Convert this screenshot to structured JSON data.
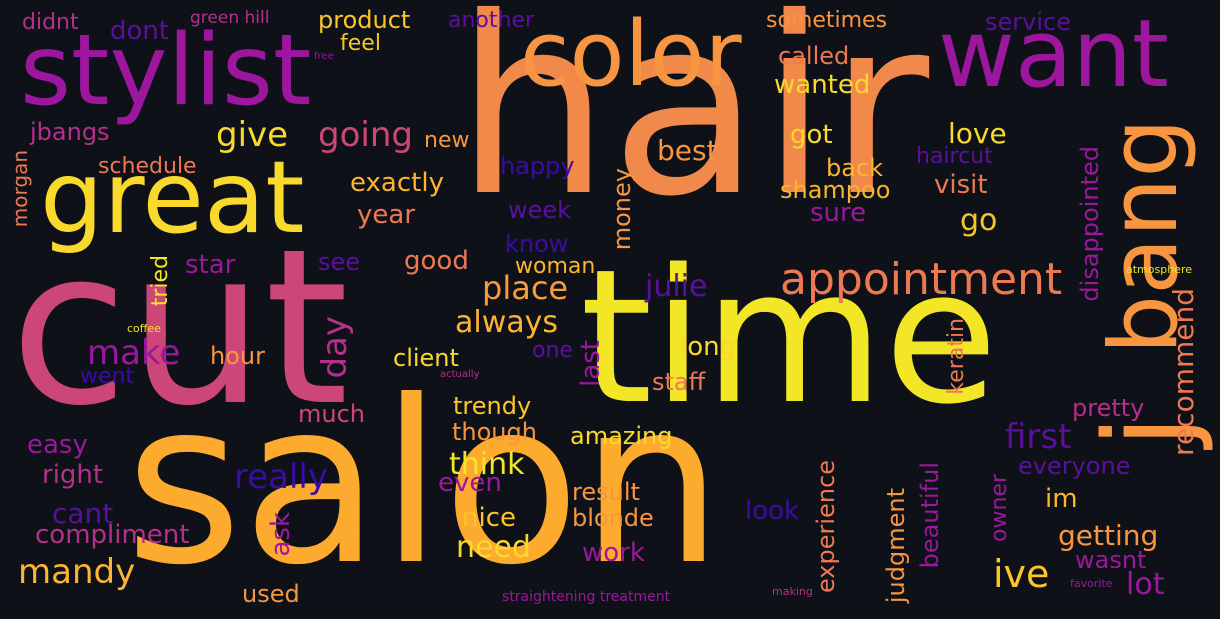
{
  "palette": {
    "background": "#0e1117",
    "deep_purple": "#3a0ca3",
    "purple": "#9c179e",
    "magenta_pink": "#cc4778",
    "orange": "#ed7953",
    "light_orange": "#f89540",
    "amber": "#fdb42f",
    "yellow": "#f0f921"
  },
  "words": {
    "hair": "hair",
    "salon": "salon",
    "cut": "cut",
    "time": "time",
    "great": "great",
    "stylist": "stylist",
    "color": "color",
    "want": "want",
    "bang": "bang",
    "j": "j",
    "appointment": "appointment",
    "first": "first",
    "place": "place",
    "always": "always",
    "julie": "julie",
    "ive": "ive",
    "day": "day",
    "make": "make",
    "mandy": "mandy",
    "really": "really",
    "think": "think",
    "need": "need",
    "going": "going",
    "give": "give",
    "exactly": "exactly",
    "best": "best",
    "recommend": "recommend",
    "haircut": "haircut",
    "visit": "visit",
    "sure": "sure",
    "go": "go",
    "love": "love",
    "got": "got",
    "back": "back",
    "shampoo": "shampoo",
    "wanted": "wanted",
    "called": "called",
    "sometimes": "sometimes",
    "service": "service",
    "product": "product",
    "feel": "feel",
    "another": "another",
    "dont": "dont",
    "didnt": "didnt",
    "green_hill": "green hill",
    "free": "free",
    "jbangs": "jbangs",
    "new": "new",
    "schedule": "schedule",
    "year": "year",
    "morgan": "morgan",
    "happy": "happy",
    "week": "week",
    "know": "know",
    "money": "money",
    "tried": "tried",
    "star": "star",
    "see": "see",
    "good": "good",
    "woman": "woman",
    "disappointed": "disappointed",
    "keratin": "keratin",
    "atmosphere": "atmosphere",
    "coffee": "coffee",
    "hour": "hour",
    "client": "client",
    "one": "one",
    "long": "long",
    "last": "last",
    "staff": "staff",
    "went": "went",
    "actually": "actually",
    "much": "much",
    "trendy": "trendy",
    "though": "though",
    "amazing": "amazing",
    "pretty": "pretty",
    "easy": "easy",
    "everyone": "everyone",
    "right": "right",
    "even": "even",
    "cant": "cant",
    "result": "result",
    "nice": "nice",
    "blonde": "blonde",
    "look": "look",
    "experience": "experience",
    "judgment": "judgment",
    "beautiful": "beautiful",
    "owner": "owner",
    "im": "im",
    "getting": "getting",
    "wasnt": "wasnt",
    "compliment": "compliment",
    "ask": "ask",
    "work": "work",
    "lot": "lot",
    "used": "used",
    "straightening_treatment": "straightening treatment",
    "making": "making",
    "favorite": "favorite"
  }
}
